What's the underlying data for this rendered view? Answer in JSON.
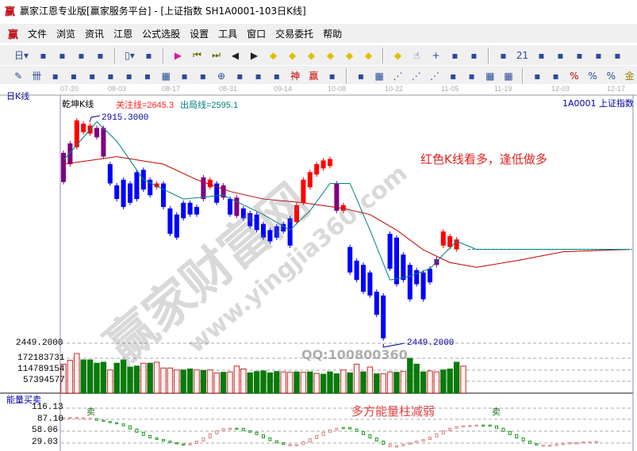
{
  "window": {
    "title": "赢家江恩专业版[赢家服务平台] - [上证指数  SH1A0001-103日K线]",
    "logo": "赢"
  },
  "menu": [
    "文件",
    "浏览",
    "资讯",
    "江恩",
    "公式选股",
    "设置",
    "工具",
    "窗口",
    "交易委托",
    "帮助"
  ],
  "toolbar1": [
    "period-day-dropdown",
    "stock-list-icon",
    "self-select-icon",
    "chart-3-icon",
    "chart-9-icon",
    "candle-type-dropdown",
    "gann-icon",
    "flag-icon",
    "first-icon",
    "last-icon",
    "prev-icon",
    "next-icon",
    "diamond-left-icon",
    "diamond-right-icon",
    "diamond-lr-icon",
    "diamond-in-icon",
    "diamond-all-icon",
    "diamond-star-icon",
    "diamond-ud-icon",
    "hand-icon",
    "crosshair-icon",
    "line-draw-icon",
    "period-icon",
    "tree-icon",
    "calendar-icon",
    "calculator-icon",
    "notes-icon",
    "save-icon",
    "network-icon",
    "computer-icon"
  ],
  "toolbar1_text": {
    "day": "日",
    "calendar": "21"
  },
  "toolbar2": [
    "pen-icon",
    "grid-icon",
    "gold1-icon",
    "gold2-icon",
    "fork-icon",
    "spiral-icon",
    "pen-ruler-icon",
    "circle-ruler-icon",
    "grid2-icon",
    "n2-icon",
    "angle-icon",
    "target-icon",
    "target2-icon",
    "square-icon",
    "lines-icon",
    "shen-icon",
    "ying-icon",
    "ruler-icon",
    "width-icon",
    "box-icon",
    "fan-icon",
    "square-fan-icon",
    "square-fan2-icon",
    "angle2-icon",
    "v-icon",
    "grid3-icon",
    "grid4-icon",
    "parallel-icon",
    "list-icon",
    "percent-red-icon",
    "percent-icon",
    "percent-line-icon",
    "gold-coin-icon"
  ],
  "toolbar2_text": {
    "shen": "神",
    "ying": "赢",
    "percent": "%"
  },
  "chart": {
    "panel_label": "日K线",
    "indicator_name": "乾坤K线",
    "focus_line": "关注线=2645.3",
    "exit_line": "出局线=2595.1",
    "symbol": "1A0001  上证指数",
    "dates": [
      "07-20",
      "08-03",
      "08-17",
      "08-31",
      "09-14",
      "10-08",
      "10-22",
      "11-05",
      "11-19",
      "12-03",
      "12-17"
    ],
    "high_label": "2915.3000",
    "low_label": "2449.2000",
    "annotation_main": "红色K线看多，逢低做多",
    "colors": {
      "up": "#ff0000",
      "down": "#0000ff",
      "neutral": "#800080",
      "ma_long": "#c00000",
      "ma_short": "#008080"
    }
  },
  "chart_data": [
    {
      "type": "candlestick",
      "title": "乾坤K线",
      "ylim": [
        2440,
        2935
      ],
      "candles": [
        [
          2846,
          2784,
          "p"
        ],
        [
          2822,
          2866,
          "p"
        ],
        [
          2858,
          2915,
          "r"
        ],
        [
          2890,
          2908,
          "r"
        ],
        [
          2887,
          2904,
          "r"
        ],
        [
          2899,
          2879,
          "p"
        ],
        [
          2899,
          2838,
          "p"
        ],
        [
          2822,
          2781,
          "b"
        ],
        [
          2777,
          2748,
          "b"
        ],
        [
          2789,
          2731,
          "b"
        ],
        [
          2781,
          2740,
          "b"
        ],
        [
          2805,
          2748,
          "b"
        ],
        [
          2810,
          2768,
          "b"
        ],
        [
          2789,
          2756,
          "b"
        ],
        [
          2773,
          2781,
          "r"
        ],
        [
          2781,
          2731,
          "b"
        ],
        [
          2728,
          2674,
          "b"
        ],
        [
          2715,
          2666,
          "b"
        ],
        [
          2740,
          2707,
          "b"
        ],
        [
          2740,
          2715,
          "b"
        ],
        [
          2731,
          2715,
          "b"
        ],
        [
          2748,
          2794,
          "p"
        ],
        [
          2773,
          2789,
          "r"
        ],
        [
          2781,
          2740,
          "b"
        ],
        [
          2751,
          2777,
          "p"
        ],
        [
          2748,
          2715,
          "b"
        ],
        [
          2712,
          2751,
          "p"
        ],
        [
          2728,
          2707,
          "b"
        ],
        [
          2718,
          2690,
          "b"
        ],
        [
          2715,
          2682,
          "b"
        ],
        [
          2695,
          2666,
          "b"
        ],
        [
          2682,
          2658,
          "b"
        ],
        [
          2690,
          2666,
          "b"
        ],
        [
          2695,
          2679,
          "b"
        ],
        [
          2707,
          2649,
          "b"
        ],
        [
          2699,
          2735,
          "r"
        ],
        [
          2740,
          2789,
          "r"
        ],
        [
          2773,
          2805,
          "r"
        ],
        [
          2800,
          2822,
          "r"
        ],
        [
          2813,
          2830,
          "r"
        ],
        [
          2818,
          2833,
          "r"
        ],
        [
          2781,
          2723,
          "p"
        ],
        [
          2723,
          2735,
          "r"
        ],
        [
          2646,
          2592,
          "b"
        ],
        [
          2617,
          2576,
          "b"
        ],
        [
          2608,
          2551,
          "b"
        ],
        [
          2592,
          2543,
          "b"
        ],
        [
          2551,
          2502,
          "b"
        ],
        [
          2543,
          2452,
          "b"
        ],
        [
          2674,
          2600,
          "b"
        ],
        [
          2666,
          2567,
          "b"
        ],
        [
          2630,
          2576,
          "b"
        ],
        [
          2608,
          2535,
          "b"
        ],
        [
          2597,
          2567,
          "b"
        ],
        [
          2592,
          2535,
          "b"
        ],
        [
          2600,
          2571,
          "b"
        ],
        [
          2620,
          2608,
          "p"
        ],
        [
          2649,
          2679,
          "r"
        ],
        [
          2669,
          2646,
          "r"
        ],
        [
          2662,
          2641,
          "r"
        ]
      ],
      "ma_long": [
        [
          0,
          2822
        ],
        [
          8,
          2838
        ],
        [
          15,
          2822
        ],
        [
          20,
          2789
        ],
        [
          25,
          2764
        ],
        [
          30,
          2748
        ],
        [
          36,
          2740
        ],
        [
          42,
          2728
        ],
        [
          46,
          2715
        ],
        [
          50,
          2682
        ],
        [
          54,
          2640
        ],
        [
          58,
          2613
        ],
        [
          62,
          2603
        ],
        [
          68,
          2617
        ],
        [
          75,
          2636
        ],
        [
          85,
          2641
        ]
      ],
      "ma_short": [
        [
          0,
          2830
        ],
        [
          5,
          2912
        ],
        [
          8,
          2871
        ],
        [
          12,
          2789
        ],
        [
          18,
          2748
        ],
        [
          24,
          2756
        ],
        [
          30,
          2715
        ],
        [
          34,
          2682
        ],
        [
          37,
          2723
        ],
        [
          40,
          2781
        ],
        [
          43,
          2781
        ],
        [
          46,
          2682
        ],
        [
          49,
          2576
        ],
        [
          52,
          2584
        ],
        [
          55,
          2600
        ],
        [
          57,
          2630
        ],
        [
          59,
          2658
        ],
        [
          62,
          2641
        ],
        [
          85,
          2641
        ]
      ]
    },
    {
      "type": "bar",
      "title": "",
      "yticks": [
        "172183731",
        "114789154",
        "57394577"
      ],
      "top_label": "2449.2000",
      "values_m": [
        150,
        170,
        205,
        172,
        172,
        155,
        160,
        120,
        155,
        172,
        135,
        140,
        155,
        155,
        160,
        130,
        130,
        120,
        120,
        125,
        120,
        118,
        120,
        105,
        108,
        110,
        140,
        125,
        105,
        112,
        115,
        105,
        112,
        110,
        108,
        110,
        108,
        110,
        102,
        98,
        110,
        100,
        120,
        105,
        150,
        110,
        135,
        100,
        100,
        110,
        108,
        112,
        180,
        150,
        110,
        115,
        110,
        120,
        125,
        160,
        140
      ],
      "colors": "rrrggggrggggrgrrrrggrgrrgrrrgggggrrgrgrgggrgrgrgrrgrgggrrgggrrg"
    },
    {
      "type": "bar",
      "title": "能量买卖",
      "yticks": [
        "116.13",
        "87.10",
        "58.06",
        "29.03"
      ],
      "ylim": [
        0,
        116.13
      ],
      "values": [
        92,
        93,
        92,
        91,
        90,
        86,
        83,
        80,
        77,
        72,
        64,
        56,
        48,
        42,
        38,
        34,
        30,
        27,
        24,
        28,
        34,
        42,
        52,
        60,
        65,
        66,
        66,
        60,
        56,
        50,
        42,
        35,
        30,
        26,
        22,
        25,
        32,
        40,
        48,
        56,
        62,
        66,
        68,
        64,
        58,
        50,
        42,
        34,
        26,
        20,
        22,
        26,
        30,
        34,
        38,
        44,
        52,
        60,
        66,
        70,
        72,
        73,
        74,
        74,
        72,
        66,
        58,
        50,
        42,
        34,
        28,
        24,
        22,
        24,
        26,
        28,
        30,
        30,
        32,
        32,
        33
      ],
      "colors": "rrrrrggggggggggggggrrrrrrrggggggggrrrrrrrrgggggggrrrrrrrrrrrrrrgggggggggrrrrrrrr",
      "sell_label": "卖",
      "annotation": "多方能量柱减弱"
    }
  ],
  "watermark": {
    "text": "赢家财富网",
    "url": "www.yingjia360.com",
    "qq": "QQ:100800360"
  }
}
